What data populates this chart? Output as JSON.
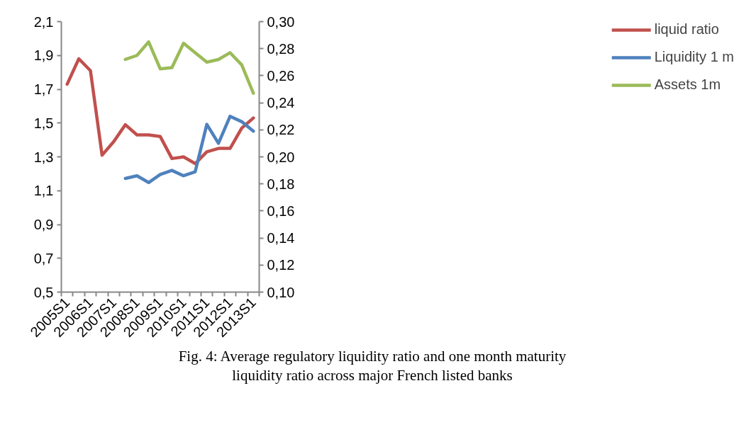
{
  "chart_data": {
    "type": "line",
    "categories": [
      "2005S1",
      null,
      "2006S1",
      null,
      "2007S1",
      null,
      "2008S1",
      null,
      "2009S1",
      null,
      "2010S1",
      null,
      "2011S1",
      null,
      "2012S1",
      null,
      "2013S1"
    ],
    "series": [
      {
        "name": "liquid ratio",
        "color": "#c0504d",
        "values": [
          1.73,
          1.88,
          1.81,
          1.31,
          1.39,
          1.49,
          1.43,
          1.43,
          1.42,
          1.29,
          1.3,
          1.26,
          1.33,
          1.35,
          1.35,
          1.47,
          1.53
        ]
      },
      {
        "name": "Liquidity 1 m",
        "color": "#4f81bd",
        "axis": "y2",
        "values": [
          null,
          null,
          null,
          null,
          null,
          0.184,
          0.186,
          0.181,
          0.187,
          0.19,
          0.186,
          0.189,
          0.224,
          0.21,
          0.23,
          0.226,
          0.219
        ]
      },
      {
        "name": "Assets 1m",
        "color": "#9bbb59",
        "axis": "y2",
        "values": [
          null,
          null,
          null,
          null,
          null,
          0.272,
          0.275,
          0.285,
          0.265,
          0.266,
          0.284,
          0.277,
          0.27,
          0.272,
          0.277,
          0.268,
          0.247
        ]
      }
    ],
    "ylim": [
      0.5,
      2.1
    ],
    "yticks": [
      {
        "value": 0.5,
        "label": "0,5"
      },
      {
        "value": 0.7,
        "label": "0,7"
      },
      {
        "value": 0.9,
        "label": "0,9"
      },
      {
        "value": 1.1,
        "label": "1,1"
      },
      {
        "value": 1.3,
        "label": "1,3"
      },
      {
        "value": 1.5,
        "label": "1,5"
      },
      {
        "value": 1.7,
        "label": "1,7"
      },
      {
        "value": 1.9,
        "label": "1,9"
      },
      {
        "value": 2.1,
        "label": "2,1"
      }
    ],
    "y2lim": [
      0.1,
      0.3
    ],
    "y2ticks": [
      {
        "value": 0.1,
        "label": "0,10"
      },
      {
        "value": 0.12,
        "label": "0,12"
      },
      {
        "value": 0.14,
        "label": "0,14"
      },
      {
        "value": 0.16,
        "label": "0,16"
      },
      {
        "value": 0.18,
        "label": "0,18"
      },
      {
        "value": 0.2,
        "label": "0,20"
      },
      {
        "value": 0.22,
        "label": "0,22"
      },
      {
        "value": 0.24,
        "label": "0,24"
      },
      {
        "value": 0.26,
        "label": "0,26"
      },
      {
        "value": 0.28,
        "label": "0,28"
      },
      {
        "value": 0.3,
        "label": "0,30"
      }
    ],
    "grid": false,
    "legend": "right",
    "line_style": "solid",
    "marker": "none",
    "annotations": [
      "Fig. 4: Average regulatory liquidity ratio and one month maturity liquidity ratio across major French listed banks"
    ]
  }
}
